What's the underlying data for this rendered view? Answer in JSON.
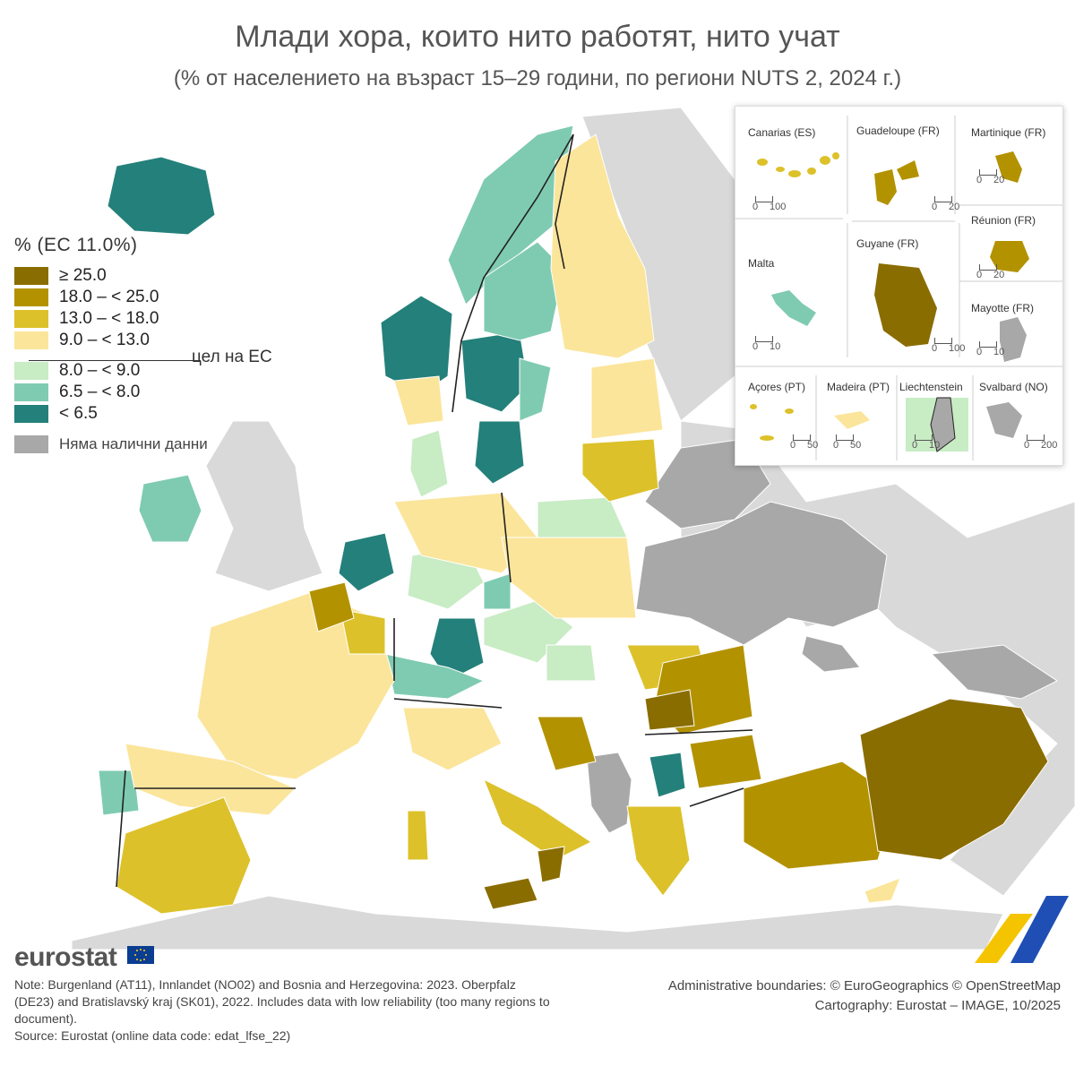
{
  "title": "Млади хора, които нито работят, нито учат",
  "subtitle": "(% от населението на възраст 15–29 години, по региони NUTS 2, 2024 г.)",
  "legend": {
    "title": "% (ЕС 11.0%)",
    "target_label": "цел на ЕС",
    "classes": [
      {
        "label": "≥ 25.0",
        "color": "#8a6d00"
      },
      {
        "label": "18.0 – < 25.0",
        "color": "#b39200"
      },
      {
        "label": "13.0 – < 18.0",
        "color": "#dcc12a"
      },
      {
        "label": "9.0 – < 13.0",
        "color": "#fbe59b"
      },
      {
        "label": "8.0 – < 9.0",
        "color": "#c8ecc4"
      },
      {
        "label": "6.5 – < 8.0",
        "color": "#7fcbb2"
      },
      {
        "label": "< 6.5",
        "color": "#24807a"
      }
    ],
    "no_data": {
      "label": "Няма налични данни",
      "color": "#a8a8a8"
    }
  },
  "insets": [
    {
      "name": "Canarias (ES)",
      "scale": [
        "0",
        "100"
      ]
    },
    {
      "name": "Guadeloupe (FR)",
      "scale": [
        "0",
        "20"
      ]
    },
    {
      "name": "Martinique (FR)",
      "scale": [
        "0",
        "20"
      ]
    },
    {
      "name": "Guyane (FR)",
      "scale": [
        "0",
        "100"
      ]
    },
    {
      "name": "Réunion (FR)",
      "scale": [
        "0",
        "20"
      ]
    },
    {
      "name": "Malta",
      "scale": [
        "0",
        "10"
      ]
    },
    {
      "name": "Mayotte (FR)",
      "scale": [
        "0",
        "10"
      ]
    },
    {
      "name": "Açores (PT)",
      "scale": [
        "0",
        "50"
      ]
    },
    {
      "name": "Madeira (PT)",
      "scale": [
        "0",
        "50"
      ]
    },
    {
      "name": "Liechtenstein",
      "scale": [
        "0",
        "10"
      ]
    },
    {
      "name": "Svalbard (NO)",
      "scale": [
        "0",
        "200"
      ]
    }
  ],
  "logo": "eurostat",
  "note": "Note: Burgenland (AT11), Innlandet (NO02) and Bosnia and Herzegovina: 2023. Oberpfalz (DE23) and Bratislavský kraj (SK01), 2022. Includes data with low reliability (too many regions to document).",
  "source": "Source: Eurostat (online data code: edat_lfse_22)",
  "credits": {
    "boundaries": "Administrative boundaries: © EuroGeographics © OpenStreetMap",
    "cartography": "Cartography: Eurostat – IMAGE, 10/2025"
  },
  "colors": {
    "nondata_land": "#d9d9d9",
    "sea": "#ffffff",
    "border": "#222222"
  }
}
